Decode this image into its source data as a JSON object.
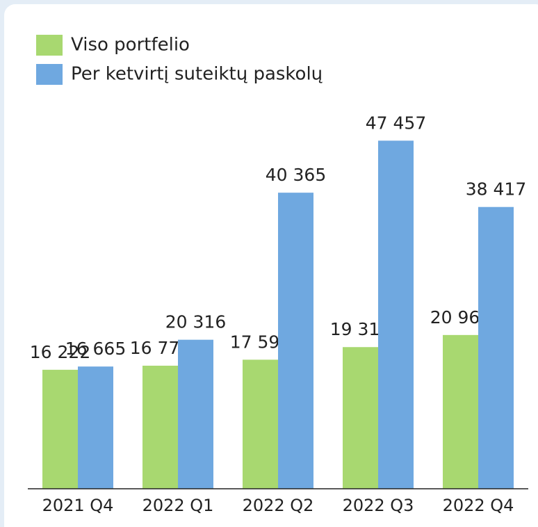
{
  "chart_data": {
    "type": "bar",
    "categories": [
      "2021 Q4",
      "2022 Q1",
      "2022 Q2",
      "2022 Q3",
      "2022 Q4"
    ],
    "series": [
      {
        "name": "Viso portfelio",
        "color": "#a8d870",
        "values": [
          16222,
          16779,
          17595,
          19314,
          20963
        ],
        "value_labels": [
          "16 222",
          "16 779",
          "17 595",
          "19 314",
          "20 963"
        ]
      },
      {
        "name": "Per ketvirtį suteiktų paskolų",
        "color": "#6fa8e0",
        "values": [
          16665,
          20316,
          40365,
          47457,
          38417
        ],
        "value_labels": [
          "16 665",
          "20 316",
          "40 365",
          "47 457",
          "38 417"
        ]
      }
    ],
    "ylim": [
      0,
      50000
    ],
    "legend": "top-left"
  }
}
